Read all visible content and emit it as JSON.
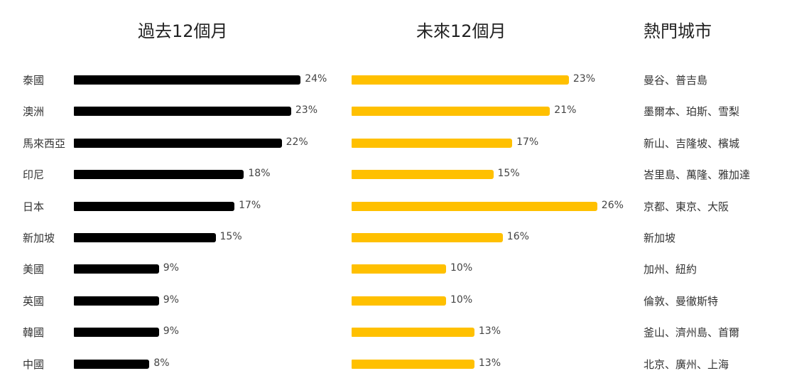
{
  "headers": {
    "past": "過去12個月",
    "future": "未來12個月",
    "cities": "熱門城市"
  },
  "colors": {
    "past": "#000000",
    "future": "#FFC000"
  },
  "rows": [
    {
      "country": "泰國",
      "past": 24,
      "past_label": "24%",
      "future": 23,
      "future_label": "23%",
      "cities": "曼谷、普吉島"
    },
    {
      "country": "澳洲",
      "past": 23,
      "past_label": "23%",
      "future": 21,
      "future_label": "21%",
      "cities": "墨爾本、珀斯、雪梨"
    },
    {
      "country": "馬來西亞",
      "past": 22,
      "past_label": "22%",
      "future": 17,
      "future_label": "17%",
      "cities": "新山、吉隆坡、檳城"
    },
    {
      "country": "印尼",
      "past": 18,
      "past_label": "18%",
      "future": 15,
      "future_label": "15%",
      "cities": "峇里島、萬隆、雅加達"
    },
    {
      "country": "日本",
      "past": 17,
      "past_label": "17%",
      "future": 26,
      "future_label": "26%",
      "cities": "京都、東京、大阪"
    },
    {
      "country": "新加坡",
      "past": 15,
      "past_label": "15%",
      "future": 16,
      "future_label": "16%",
      "cities": "新加坡"
    },
    {
      "country": "美國",
      "past": 9,
      "past_label": "9%",
      "future": 10,
      "future_label": "10%",
      "cities": "加州、紐約"
    },
    {
      "country": "英國",
      "past": 9,
      "past_label": "9%",
      "future": 10,
      "future_label": "10%",
      "cities": "倫敦、曼徹斯特"
    },
    {
      "country": "韓國",
      "past": 9,
      "past_label": "9%",
      "future": 13,
      "future_label": "13%",
      "cities": "釜山、濟州島、首爾"
    },
    {
      "country": "中國",
      "past": 8,
      "past_label": "8%",
      "future": 13,
      "future_label": "13%",
      "cities": "北京、廣州、上海"
    }
  ],
  "chart_data": [
    {
      "type": "bar",
      "orientation": "horizontal",
      "title": "過去12個月",
      "categories": [
        "泰國",
        "澳洲",
        "馬來西亞",
        "印尼",
        "日本",
        "新加坡",
        "美國",
        "英國",
        "韓國",
        "中國"
      ],
      "values": [
        24,
        23,
        22,
        18,
        17,
        15,
        9,
        9,
        9,
        8
      ],
      "unit": "%",
      "color": "#000000",
      "grid": false,
      "legend": null
    },
    {
      "type": "bar",
      "orientation": "horizontal",
      "title": "未來12個月",
      "categories": [
        "泰國",
        "澳洲",
        "馬來西亞",
        "印尼",
        "日本",
        "新加坡",
        "美國",
        "英國",
        "韓國",
        "中國"
      ],
      "values": [
        23,
        21,
        17,
        15,
        26,
        16,
        10,
        10,
        13,
        13
      ],
      "unit": "%",
      "color": "#FFC000",
      "grid": false,
      "legend": null
    },
    {
      "type": "table",
      "title": "熱門城市",
      "categories": [
        "泰國",
        "澳洲",
        "馬來西亞",
        "印尼",
        "日本",
        "新加坡",
        "美國",
        "英國",
        "韓國",
        "中國"
      ],
      "values": [
        "曼谷、普吉島",
        "墨爾本、珀斯、雪梨",
        "新山、吉隆坡、檳城",
        "峇里島、萬隆、雅加達",
        "京都、東京、大阪",
        "新加坡",
        "加州、紐約",
        "倫敦、曼徹斯特",
        "釜山、濟州島、首爾",
        "北京、廣州、上海"
      ]
    }
  ]
}
